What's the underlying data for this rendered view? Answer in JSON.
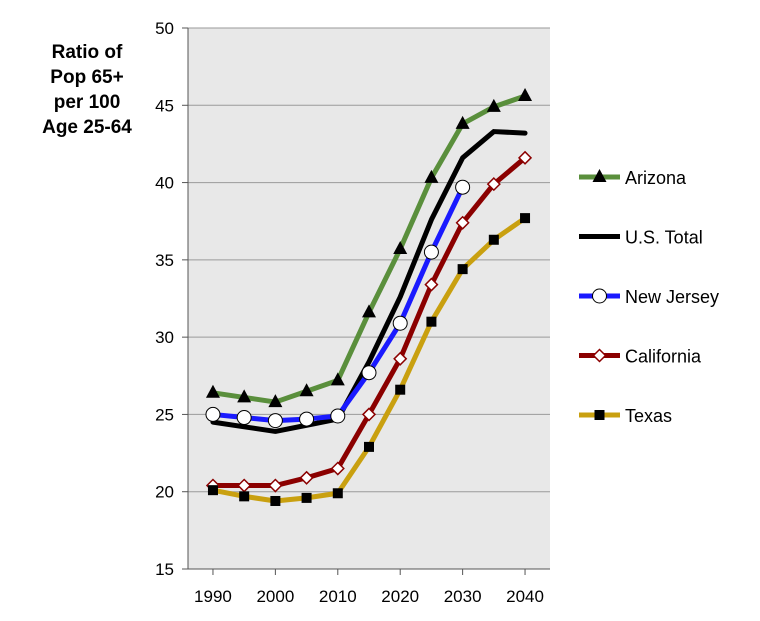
{
  "chart_data": {
    "type": "line",
    "title": "",
    "xlabel": "",
    "ylabel_lines": [
      "Ratio of",
      "Pop 65+",
      "per 100",
      "Age 25-64"
    ],
    "xlim": [
      1986,
      2044
    ],
    "ylim": [
      15,
      50
    ],
    "yticks": [
      15,
      20,
      25,
      30,
      35,
      40,
      45,
      50
    ],
    "xticks": [
      1990,
      2000,
      2010,
      2020,
      2030,
      2040
    ],
    "xtick_labels": [
      "1990",
      "2000",
      "2010",
      "2020",
      "2030",
      "2040"
    ],
    "ytick_labels": [
      "15",
      "20",
      "25",
      "30",
      "35",
      "40",
      "45",
      "50"
    ],
    "grid": "horizontal",
    "legend_position": "right",
    "series": [
      {
        "name": "Arizona",
        "color": "#5a8f3c",
        "marker": "triangle",
        "x": [
          1990,
          1995,
          2000,
          2005,
          2010,
          2015,
          2020,
          2025,
          2030,
          2035,
          2040
        ],
        "y": [
          26.4,
          26.1,
          25.8,
          26.5,
          27.2,
          31.6,
          35.7,
          40.3,
          43.8,
          44.9,
          45.6
        ]
      },
      {
        "name": "U.S. Total",
        "color": "#000000",
        "marker": "none",
        "x": [
          1990,
          1995,
          2000,
          2005,
          2010,
          2015,
          2020,
          2025,
          2030,
          2035,
          2040
        ],
        "y": [
          24.5,
          24.2,
          23.9,
          24.3,
          24.7,
          28.4,
          32.6,
          37.6,
          41.6,
          43.3,
          43.2
        ]
      },
      {
        "name": "New Jersey",
        "color": "#1a1aff",
        "marker": "circle",
        "x": [
          1990,
          1995,
          2000,
          2005,
          2010,
          2015,
          2020,
          2025,
          2030
        ],
        "y": [
          25.0,
          24.8,
          24.6,
          24.7,
          24.9,
          27.7,
          30.9,
          35.5,
          39.7
        ]
      },
      {
        "name": "California",
        "color": "#8b0000",
        "marker": "diamond",
        "x": [
          1990,
          1995,
          2000,
          2005,
          2010,
          2015,
          2020,
          2025,
          2030,
          2035,
          2040
        ],
        "y": [
          20.4,
          20.4,
          20.4,
          20.9,
          21.5,
          25.0,
          28.6,
          33.4,
          37.4,
          39.9,
          41.6
        ]
      },
      {
        "name": "Texas",
        "color": "#c9a010",
        "marker": "square",
        "x": [
          1990,
          1995,
          2000,
          2005,
          2010,
          2015,
          2020,
          2025,
          2030,
          2035,
          2040
        ],
        "y": [
          20.1,
          19.7,
          19.4,
          19.6,
          19.9,
          22.9,
          26.6,
          31.0,
          34.4,
          36.3,
          37.7
        ]
      }
    ]
  }
}
